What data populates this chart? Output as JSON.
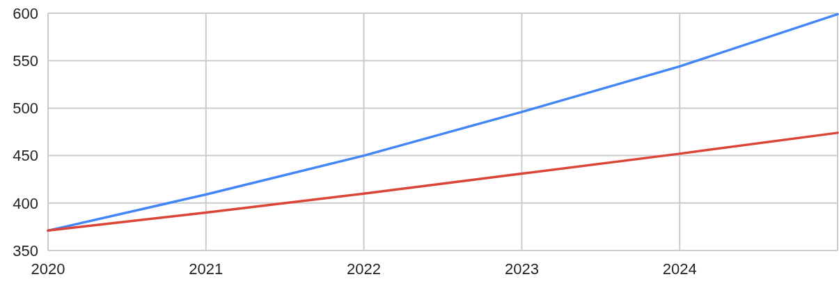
{
  "chart_data": {
    "type": "line",
    "x": [
      2020,
      2021,
      2022,
      2023,
      2024,
      2025
    ],
    "series": [
      {
        "color": "#4285f4",
        "values": [
          371,
          409,
          450,
          496,
          544,
          599
        ]
      },
      {
        "color": "#db4437",
        "values": [
          371,
          390,
          410,
          431,
          452,
          474
        ]
      }
    ],
    "xlim": [
      2020,
      2025
    ],
    "xticks": [
      2020,
      2021,
      2022,
      2023,
      2024
    ],
    "ylim": [
      350,
      600
    ],
    "yticks": [
      350,
      400,
      450,
      500,
      550,
      600
    ],
    "grid": true,
    "line_style": "solid"
  }
}
